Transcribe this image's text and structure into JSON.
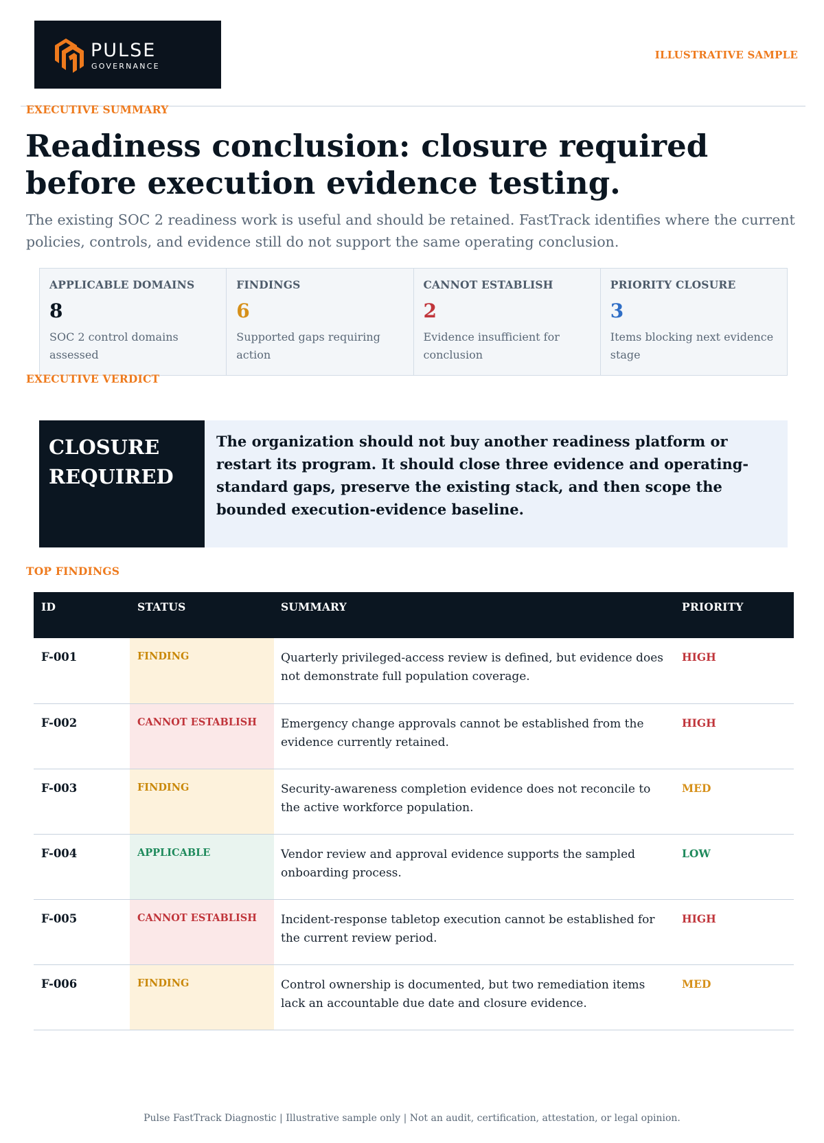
{
  "brand": {
    "name": "PULSE",
    "sub": "GOVERNANCE",
    "accent": "#ee7a1d",
    "dark": "#0b1621"
  },
  "sample_tag": "ILLUSTRATIVE SAMPLE",
  "executive_summary": {
    "label": "EXECUTIVE SUMMARY",
    "headline": "Readiness conclusion: closure required before execution evidence testing.",
    "lede": "The existing SOC 2 readiness work is useful and should be retained. FastTrack identifies where the current policies, controls, and evidence still do not support the same operating conclusion."
  },
  "metrics": [
    {
      "label": "APPLICABLE DOMAINS",
      "value": "8",
      "desc": "SOC 2 control domains assessed",
      "color": "#0b1621"
    },
    {
      "label": "FINDINGS",
      "value": "6",
      "desc": "Supported gaps requiring action",
      "color": "#d6901a"
    },
    {
      "label": "CANNOT ESTABLISH",
      "value": "2",
      "desc": "Evidence insufficient for conclusion",
      "color": "#c0353b"
    },
    {
      "label": "PRIORITY CLOSURE",
      "value": "3",
      "desc": "Items blocking next evidence stage",
      "color": "#2f6ec6"
    }
  ],
  "verdict": {
    "label": "EXECUTIVE VERDICT",
    "tag": "CLOSURE REQUIRED",
    "text": "The organization should not buy another readiness platform or restart its program. It should close three evidence and operating-standard gaps, preserve the existing stack, and then scope the bounded execution-evidence baseline."
  },
  "findings": {
    "label": "TOP FINDINGS",
    "headers": {
      "id": "ID",
      "status": "STATUS",
      "summary": "SUMMARY",
      "priority": "PRIORITY"
    },
    "rows": [
      {
        "id": "F-001",
        "status": "FINDING",
        "summary": "Quarterly privileged-access review is defined, but evidence does not demonstrate full population coverage.",
        "priority": "HIGH"
      },
      {
        "id": "F-002",
        "status": "CANNOT ESTABLISH",
        "summary": "Emergency change approvals cannot be established from the evidence currently retained.",
        "priority": "HIGH"
      },
      {
        "id": "F-003",
        "status": "FINDING",
        "summary": "Security-awareness completion evidence does not reconcile to the active workforce population.",
        "priority": "MED"
      },
      {
        "id": "F-004",
        "status": "APPLICABLE",
        "summary": "Vendor review and approval evidence supports the sampled onboarding process.",
        "priority": "LOW"
      },
      {
        "id": "F-005",
        "status": "CANNOT ESTABLISH",
        "summary": "Incident-response tabletop execution cannot be established for the current review period.",
        "priority": "HIGH"
      },
      {
        "id": "F-006",
        "status": "FINDING",
        "summary": "Control ownership is documented, but two remediation items lack an accountable due date and closure evidence.",
        "priority": "MED"
      }
    ]
  },
  "footer": "Pulse FastTrack Diagnostic | Illustrative sample only | Not an audit, certification, attestation, or legal opinion."
}
